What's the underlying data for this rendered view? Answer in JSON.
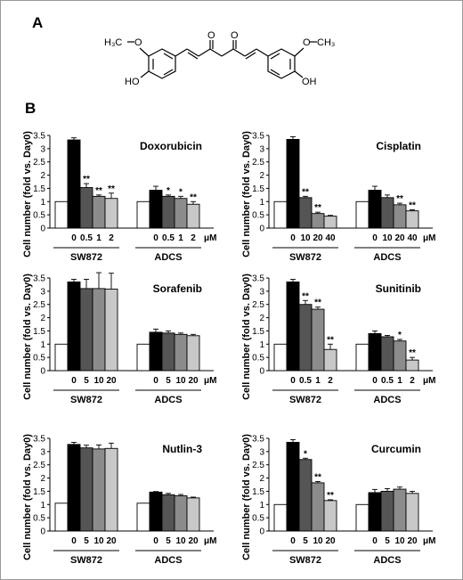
{
  "figure": {
    "panel_a_label": "A",
    "panel_b_label": "B",
    "molecule": {
      "left_methyl": "H₃C",
      "right_methyl": "CH₃",
      "oxygen": "O",
      "left_hydroxyl": "HO",
      "right_hydroxyl": "OH"
    }
  },
  "chart_data": [
    {
      "type": "bar",
      "title": "Doxorubicin",
      "ylabel": "Cell number (fold vs. Day0)",
      "ylim": [
        0,
        3.5
      ],
      "yticks": [
        "0",
        "0.5",
        "1",
        "1.5",
        "2",
        "2.5",
        "3",
        "3.5"
      ],
      "unit": "μM",
      "groups": [
        {
          "name": "SW872",
          "categories": [
            "",
            "0",
            "0.5",
            "1",
            "2"
          ],
          "values": [
            1.0,
            3.33,
            1.53,
            1.2,
            1.12
          ],
          "errors": [
            0,
            0.08,
            0.15,
            0.05,
            0.2
          ],
          "marks": [
            "",
            "",
            "**",
            "**",
            "**"
          ]
        },
        {
          "name": "ADCS",
          "categories": [
            "",
            "0",
            "0.5",
            "1",
            "2"
          ],
          "values": [
            1.0,
            1.43,
            1.2,
            1.12,
            0.9
          ],
          "errors": [
            0,
            0.15,
            0.05,
            0.08,
            0.1
          ],
          "marks": [
            "",
            "",
            "*",
            "*",
            "**"
          ]
        }
      ]
    },
    {
      "type": "bar",
      "title": "Cisplatin",
      "ylabel": "Cell number (fold vs. Day0)",
      "ylim": [
        0,
        3.5
      ],
      "yticks": [
        "0",
        "0.5",
        "1",
        "1.5",
        "2",
        "2.5",
        "3",
        "3.5"
      ],
      "unit": "μM",
      "groups": [
        {
          "name": "SW872",
          "categories": [
            "",
            "0",
            "10",
            "20",
            "40"
          ],
          "values": [
            1.0,
            3.35,
            1.15,
            0.55,
            0.45
          ],
          "errors": [
            0,
            0.1,
            0.05,
            0.05,
            0.03
          ],
          "marks": [
            "",
            "",
            "**",
            "**",
            ""
          ]
        },
        {
          "name": "ADCS",
          "categories": [
            "",
            "0",
            "10",
            "20",
            "40"
          ],
          "values": [
            1.0,
            1.43,
            1.15,
            0.88,
            0.65
          ],
          "errors": [
            0,
            0.15,
            0.1,
            0.06,
            0.04
          ],
          "marks": [
            "",
            "",
            "",
            "**",
            "**"
          ]
        }
      ]
    },
    {
      "type": "bar",
      "title": "Sorafenib",
      "ylabel": "Cell number (fold vs. Day0)",
      "ylim": [
        0,
        3.5
      ],
      "yticks": [
        "0",
        "0.5",
        "1",
        "1.5",
        "2",
        "2.5",
        "3",
        "3.5"
      ],
      "unit": "μM",
      "groups": [
        {
          "name": "SW872",
          "categories": [
            "",
            "0",
            "5",
            "10",
            "20"
          ],
          "values": [
            1.0,
            3.35,
            3.1,
            3.1,
            3.08
          ],
          "errors": [
            0,
            0.1,
            0.35,
            0.6,
            0.6
          ],
          "marks": [
            "",
            "",
            "",
            "",
            ""
          ]
        },
        {
          "name": "ADCS",
          "categories": [
            "",
            "0",
            "5",
            "10",
            "20"
          ],
          "values": [
            1.0,
            1.45,
            1.42,
            1.37,
            1.32
          ],
          "errors": [
            0,
            0.12,
            0.08,
            0.05,
            0.05
          ],
          "marks": [
            "",
            "",
            "",
            "",
            ""
          ]
        }
      ]
    },
    {
      "type": "bar",
      "title": "Sunitinib",
      "ylabel": "Cell number (fold vs. Day0)",
      "ylim": [
        0,
        3.5
      ],
      "yticks": [
        "0",
        "0.5",
        "1",
        "1.5",
        "2",
        "2.5",
        "3",
        "3.5"
      ],
      "unit": "μM",
      "groups": [
        {
          "name": "SW872",
          "categories": [
            "",
            "0",
            "0.5",
            "1",
            "2"
          ],
          "values": [
            1.0,
            3.35,
            2.5,
            2.32,
            0.8
          ],
          "errors": [
            0,
            0.1,
            0.15,
            0.08,
            0.2
          ],
          "marks": [
            "",
            "",
            "**",
            "**",
            "**"
          ]
        },
        {
          "name": "ADCS",
          "categories": [
            "",
            "0",
            "0.5",
            "1",
            "2"
          ],
          "values": [
            1.0,
            1.4,
            1.28,
            1.12,
            0.4
          ],
          "errors": [
            0,
            0.1,
            0.05,
            0.06,
            0.1
          ],
          "marks": [
            "",
            "",
            "",
            "*",
            "**"
          ]
        }
      ]
    },
    {
      "type": "bar",
      "title": "Nutlin-3",
      "ylabel": "Cell number (fold vs. Day0)",
      "ylim": [
        0,
        3.5
      ],
      "yticks": [
        "0",
        "0.5",
        "1",
        "1.5",
        "2",
        "2.5",
        "3",
        "3.5"
      ],
      "unit": "μM",
      "groups": [
        {
          "name": "SW872",
          "categories": [
            "",
            "0",
            "5",
            "10",
            "20"
          ],
          "values": [
            1.05,
            3.27,
            3.14,
            3.1,
            3.12
          ],
          "errors": [
            0,
            0.08,
            0.1,
            0.15,
            0.2
          ],
          "marks": [
            "",
            "",
            "",
            "",
            ""
          ]
        },
        {
          "name": "ADCS",
          "categories": [
            "",
            "0",
            "5",
            "10",
            "20"
          ],
          "values": [
            1.05,
            1.47,
            1.37,
            1.33,
            1.25
          ],
          "errors": [
            0,
            0.02,
            0.05,
            0.05,
            0.03
          ],
          "marks": [
            "",
            "",
            "",
            "",
            ""
          ]
        }
      ]
    },
    {
      "type": "bar",
      "title": "Curcumin",
      "ylabel": "Cell number (fold vs. Day0)",
      "ylim": [
        0,
        3.5
      ],
      "yticks": [
        "0",
        "0.5",
        "1",
        "1.5",
        "2",
        "2.5",
        "3",
        "3.5"
      ],
      "unit": "μM",
      "groups": [
        {
          "name": "SW872",
          "categories": [
            "",
            "0",
            "5",
            "10",
            "20"
          ],
          "values": [
            1.0,
            3.35,
            2.7,
            1.82,
            1.15
          ],
          "errors": [
            0,
            0.1,
            0.05,
            0.05,
            0.03
          ],
          "marks": [
            "",
            "",
            "*",
            "**",
            "**"
          ]
        },
        {
          "name": "ADCS",
          "categories": [
            "",
            "0",
            "5",
            "10",
            "20"
          ],
          "values": [
            1.0,
            1.45,
            1.5,
            1.58,
            1.42
          ],
          "errors": [
            0,
            0.12,
            0.1,
            0.08,
            0.08
          ],
          "marks": [
            "",
            "",
            "",
            "",
            ""
          ]
        }
      ]
    }
  ],
  "colors": {
    "bar_fills": [
      "#ffffff",
      "#000000",
      "#555555",
      "#8c8c8c",
      "#c8c8c8"
    ],
    "stroke": "#000000"
  }
}
